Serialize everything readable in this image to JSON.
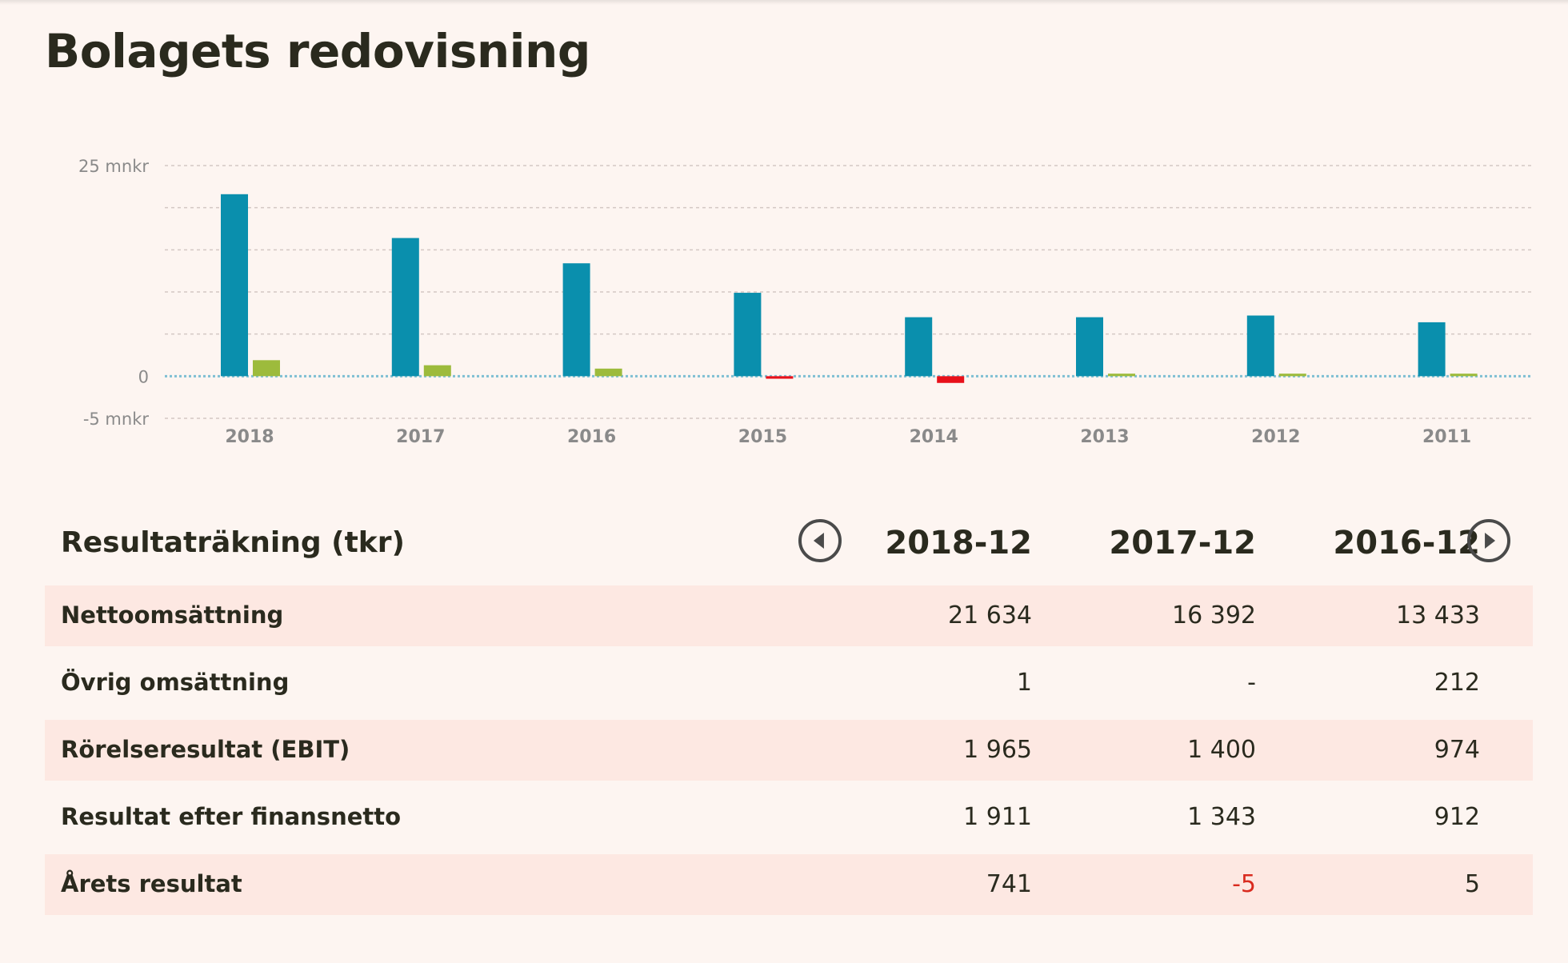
{
  "page": {
    "title": "Bolagets redovisning"
  },
  "colors": {
    "background": "#fdf5f1",
    "revenue_bar": "#0a8fad",
    "result_positive": "#9dbb3c",
    "result_negative": "#e8101a",
    "negative_text": "#d92b1f",
    "row_alt": "#fde8e2"
  },
  "chart_data": {
    "type": "bar",
    "unit": "mnkr",
    "y_tick_labels": [
      {
        "value": 25,
        "label": "25 mnkr"
      },
      {
        "value": 0,
        "label": "0"
      },
      {
        "value": -5,
        "label": "-5 mnkr"
      }
    ],
    "ylim": [
      -5,
      25
    ],
    "gridlines": [
      25,
      20,
      15,
      10,
      5,
      0,
      -5
    ],
    "categories": [
      "2018",
      "2017",
      "2016",
      "2015",
      "2014",
      "2013",
      "2012",
      "2011"
    ],
    "series": [
      {
        "color": "#0a8fad",
        "values": [
          21.6,
          16.4,
          13.4,
          9.9,
          7.0,
          7.0,
          7.2,
          6.4
        ]
      },
      {
        "color": "#9dbb3c",
        "negative_color": "#e8101a",
        "values": [
          1.9,
          1.3,
          0.9,
          -0.3,
          -0.8,
          0.3,
          0.3,
          0.3
        ]
      }
    ],
    "legend": "none",
    "grid": true
  },
  "table": {
    "title": "Resultaträkning (tkr)",
    "columns": [
      "2018-12",
      "2017-12",
      "2016-12"
    ],
    "rows": [
      {
        "label": "Nettoomsättning",
        "values": [
          "21 634",
          "16 392",
          "13 433"
        ]
      },
      {
        "label": "Övrig omsättning",
        "values": [
          "1",
          "-",
          "212"
        ]
      },
      {
        "label": "Rörelseresultat (EBIT)",
        "values": [
          "1 965",
          "1 400",
          "974"
        ]
      },
      {
        "label": "Resultat efter finansnetto",
        "values": [
          "1 911",
          "1 343",
          "912"
        ]
      },
      {
        "label": "Årets resultat",
        "values": [
          "741",
          "-5",
          "5"
        ]
      }
    ]
  },
  "icons": {
    "prev": "circle-arrow-left-icon",
    "next": "circle-arrow-right-icon"
  }
}
